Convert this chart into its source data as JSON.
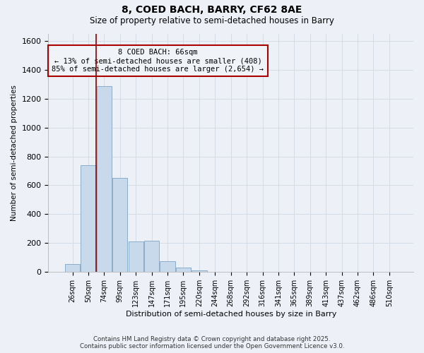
{
  "title1": "8, COED BACH, BARRY, CF62 8AE",
  "title2": "Size of property relative to semi-detached houses in Barry",
  "xlabel": "Distribution of semi-detached houses by size in Barry",
  "ylabel": "Number of semi-detached properties",
  "categories": [
    "26sqm",
    "50sqm",
    "74sqm",
    "99sqm",
    "123sqm",
    "147sqm",
    "171sqm",
    "195sqm",
    "220sqm",
    "244sqm",
    "268sqm",
    "292sqm",
    "316sqm",
    "341sqm",
    "365sqm",
    "389sqm",
    "413sqm",
    "437sqm",
    "462sqm",
    "486sqm",
    "510sqm"
  ],
  "values": [
    55,
    740,
    1285,
    650,
    210,
    215,
    75,
    30,
    10,
    0,
    0,
    0,
    0,
    0,
    0,
    0,
    0,
    0,
    0,
    0,
    0
  ],
  "bar_color": "#c8d9ec",
  "bar_edge_color": "#8aadcc",
  "grid_color": "#d0d8e4",
  "vline_x": 1.5,
  "vline_color": "#8b0000",
  "annotation_text": "8 COED BACH: 66sqm\n← 13% of semi-detached houses are smaller (408)\n85% of semi-detached houses are larger (2,654) →",
  "annotation_box_facecolor": "#f0f4f8",
  "annotation_box_edgecolor": "#aa0000",
  "ylim": [
    0,
    1650
  ],
  "yticks": [
    0,
    200,
    400,
    600,
    800,
    1000,
    1200,
    1400,
    1600
  ],
  "footer1": "Contains HM Land Registry data © Crown copyright and database right 2025.",
  "footer2": "Contains public sector information licensed under the Open Government Licence v3.0.",
  "bg_color": "#edf1f7"
}
